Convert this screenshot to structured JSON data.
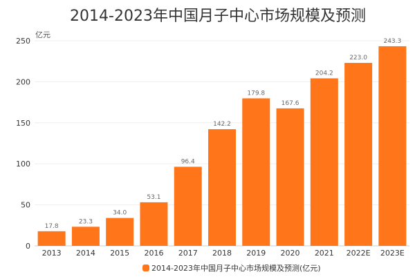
{
  "chart_data": {
    "type": "bar",
    "title": "2014-2023年中国月子中心市场规模及预测",
    "ylabel": "亿元",
    "xlabel": "",
    "categories": [
      "2013",
      "2014",
      "2015",
      "2016",
      "2017",
      "2018",
      "2019",
      "2020",
      "2021",
      "2022E",
      "2023E"
    ],
    "series": [
      {
        "name": "2014-2023年中国月子中心市场规模及预测(亿元)",
        "values": [
          17.8,
          23.3,
          34.0,
          53.1,
          96.4,
          142.2,
          179.8,
          167.6,
          204.2,
          223.0,
          243.3
        ],
        "labels": [
          "17.8",
          "23.3",
          "34.0",
          "53.1",
          "96.4",
          "142.2",
          "179.8",
          "167.6",
          "204.2",
          "223.0",
          "243.3"
        ]
      }
    ],
    "ylim": [
      0,
      250
    ],
    "yticks": [
      "0",
      "50",
      "100",
      "150",
      "200",
      "250"
    ],
    "grid": true,
    "legend_position": "bottom",
    "colors": {
      "bar": "#FF7519",
      "grid": "#EEEEEE",
      "axis_text": "#333333",
      "label_text": "#666666"
    }
  }
}
